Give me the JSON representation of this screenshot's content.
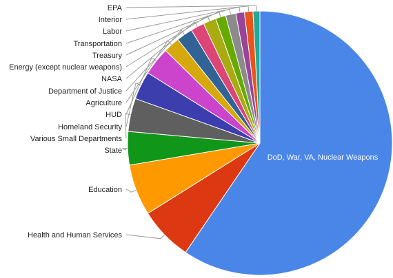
{
  "chart_data": {
    "type": "pie",
    "title": "",
    "start_angle_deg": 0,
    "direction": "clockwise",
    "slices": [
      {
        "label": "DoD, War, VA, Nuclear Weapons",
        "value": 57.0,
        "color": "#4a86e8",
        "label_inside": true
      },
      {
        "label": "Health and Human Services",
        "value": 6.3,
        "color": "#dc3912",
        "label_inside": false
      },
      {
        "label": "Education",
        "value": 6.0,
        "color": "#ff9900",
        "label_inside": false
      },
      {
        "label": "State",
        "value": 3.9,
        "color": "#109618",
        "label_inside": false
      },
      {
        "label": "Various Small Departments",
        "value": 3.9,
        "color": "#5f5f5f",
        "label_inside": false
      },
      {
        "label": "Homeland Security",
        "value": 3.3,
        "color": "#3b3eac",
        "label_inside": false
      },
      {
        "label": "HUD",
        "value": 3.3,
        "color": "#cc44cc",
        "label_inside": false
      },
      {
        "label": "Agriculture",
        "value": 1.9,
        "color": "#d6a80b",
        "label_inside": false
      },
      {
        "label": "Department of Justice",
        "value": 1.9,
        "color": "#316395",
        "label_inside": false
      },
      {
        "label": "NASA",
        "value": 1.6,
        "color": "#dd4477",
        "label_inside": false
      },
      {
        "label": "Energy (except nuclear weapons)",
        "value": 1.5,
        "color": "#aaaa11",
        "label_inside": false
      },
      {
        "label": "Treasury",
        "value": 1.2,
        "color": "#66aa00",
        "label_inside": false
      },
      {
        "label": "Transportation",
        "value": 1.2,
        "color": "#8b8b8b",
        "label_inside": false
      },
      {
        "label": "Labor",
        "value": 1.0,
        "color": "#994499",
        "label_inside": false
      },
      {
        "label": "Interior",
        "value": 1.0,
        "color": "#e8541a",
        "label_inside": false
      },
      {
        "label": "EPA",
        "value": 0.8,
        "color": "#22aa99",
        "label_inside": false
      }
    ]
  }
}
